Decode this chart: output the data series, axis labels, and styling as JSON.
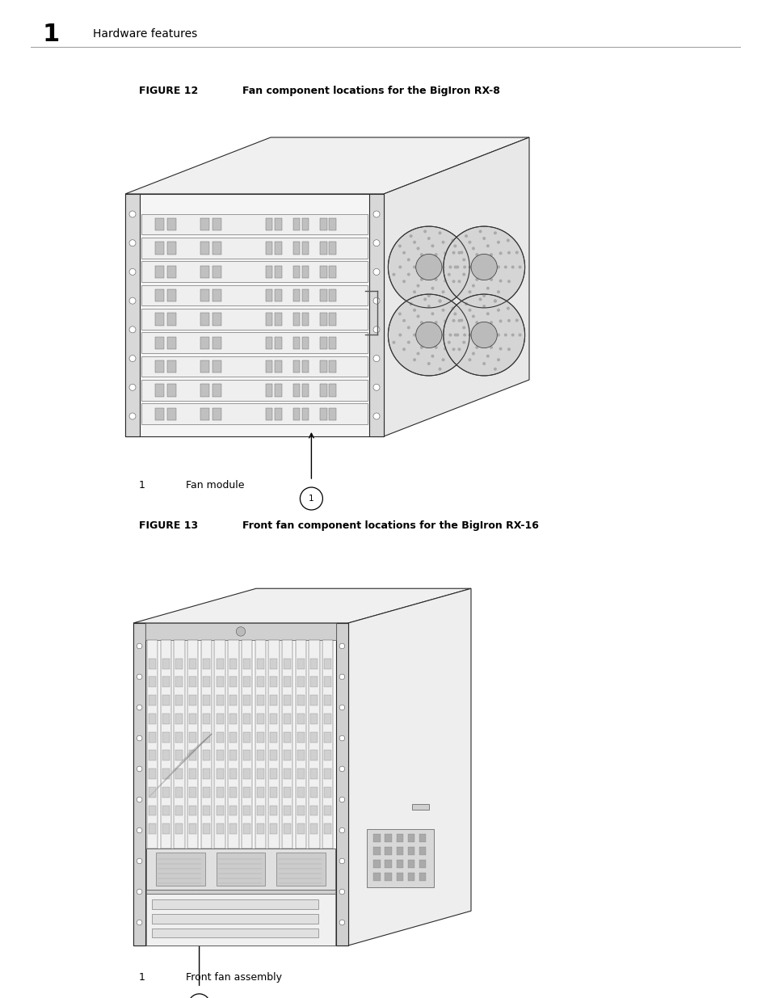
{
  "background_color": "#ffffff",
  "page_width": 9.54,
  "page_height": 12.35,
  "dpi": 100,
  "header_number": "1",
  "header_text": "Hardware features",
  "figure12_label": "FIGURE 12",
  "figure12_title": "Fan component locations for the BigIron RX-8",
  "figure13_label": "FIGURE 13",
  "figure13_title": "Front fan component locations for the BigIron RX-16",
  "caption1_num": "1",
  "caption1_text": "Fan module",
  "caption2_num": "1",
  "caption2_text": "Front fan assembly",
  "text_color": "#000000",
  "header_num_fontsize": 22,
  "header_text_fontsize": 10,
  "figure_label_fontsize": 9,
  "figure_title_fontsize": 9,
  "caption_fontsize": 9,
  "line_color": "#888888"
}
